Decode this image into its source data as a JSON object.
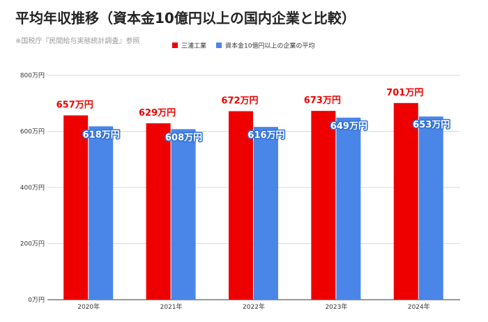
{
  "chart_data": {
    "type": "bar",
    "title": "平均年収推移（資本金10億円以上の国内企業と比較）",
    "subtitle": "※国税庁『民間給与実態統計調査』参照",
    "categories": [
      "2020年",
      "2021年",
      "2022年",
      "2023年",
      "2024年"
    ],
    "series": [
      {
        "name": "三浦工業",
        "color": "#ee0000",
        "values": [
          657,
          629,
          672,
          673,
          701
        ],
        "labels": [
          "657万円",
          "629万円",
          "672万円",
          "673万円",
          "701万円"
        ]
      },
      {
        "name": "資本金10億円以上の企業の平均",
        "color": "#4a86e8",
        "values": [
          618,
          608,
          616,
          649,
          653
        ],
        "labels": [
          "618万円",
          "608万円",
          "616万円",
          "649万円",
          "653万円"
        ]
      }
    ],
    "ylim": [
      0,
      800
    ],
    "yticks": [
      0,
      200,
      400,
      600,
      800
    ],
    "ytick_labels": [
      "0万円",
      "200万円",
      "400万円",
      "600万円",
      "800万円"
    ],
    "grid": true,
    "legend_position": "top-center"
  }
}
